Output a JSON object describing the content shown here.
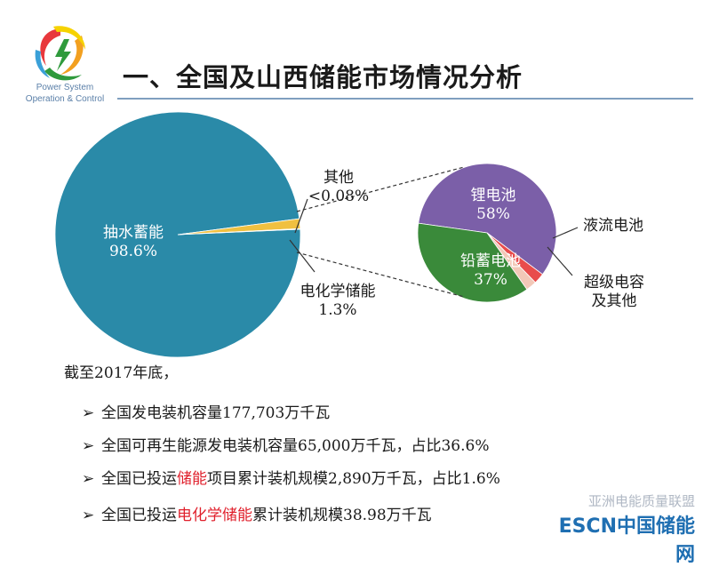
{
  "logo": {
    "line1": "Power System",
    "line2": "Operation & Control"
  },
  "title": "一、全国及山西储能市场情况分析",
  "chart_data": [
    {
      "type": "pie",
      "slices": [
        {
          "label": "抽水蓄能",
          "value": 98.6,
          "value_label": "98.6%",
          "color": "#2a8aa8"
        },
        {
          "label": "电化学储能",
          "value": 1.3,
          "value_label": "1.3%",
          "color": "#f0c040"
        },
        {
          "label": "其他",
          "value": 0.08,
          "value_label": "<0.08%",
          "color": "#e8604a"
        }
      ]
    },
    {
      "type": "pie",
      "slices": [
        {
          "label": "锂电池",
          "value": 58,
          "value_label": "58%",
          "color": "#7b5fa8"
        },
        {
          "label": "液流电池",
          "value": 2.5,
          "value_label": "",
          "color": "#e84c4c"
        },
        {
          "label": "超级电容及其他",
          "value": 2.5,
          "value_label": "",
          "color": "#f2c8b8"
        },
        {
          "label": "铅蓄电池",
          "value": 37,
          "value_label": "37%",
          "color": "#3a8a3a"
        }
      ]
    }
  ],
  "labels": {
    "pumped": {
      "name": "抽水蓄能",
      "pct": "98.6%"
    },
    "other": {
      "name": "其他",
      "pct": "<0.08%"
    },
    "electro": {
      "name": "电化学储能",
      "pct": "1.3%"
    },
    "lithium": {
      "name": "锂电池",
      "pct": "58%"
    },
    "lead": {
      "name": "铅蓄电池",
      "pct": "37%"
    },
    "flow": {
      "name": "液流电池"
    },
    "supercap": {
      "line1": "超级电容",
      "line2": "及其他"
    }
  },
  "text": {
    "intro": "截至2017年底，",
    "bullet": "➢",
    "b1": "全国发电装机容量177,703万千瓦",
    "b2": "全国可再生能源发电装机容量65,000万千瓦，占比36.6%",
    "b3_pre": "全国已投运",
    "b3_hl": "储能",
    "b3_post": "项目累计装机规模2,890万千瓦，占比1.6%",
    "b4_pre": "全国已投运",
    "b4_hl": "电化学储能",
    "b4_post": "累计装机规模38.98万千瓦"
  },
  "watermark": {
    "line1": "亚洲电能质量联盟",
    "line2": "ESCN中国储能网"
  },
  "colors": {
    "brand_blue": "#1f6fb2",
    "highlight": "#e0202c"
  }
}
